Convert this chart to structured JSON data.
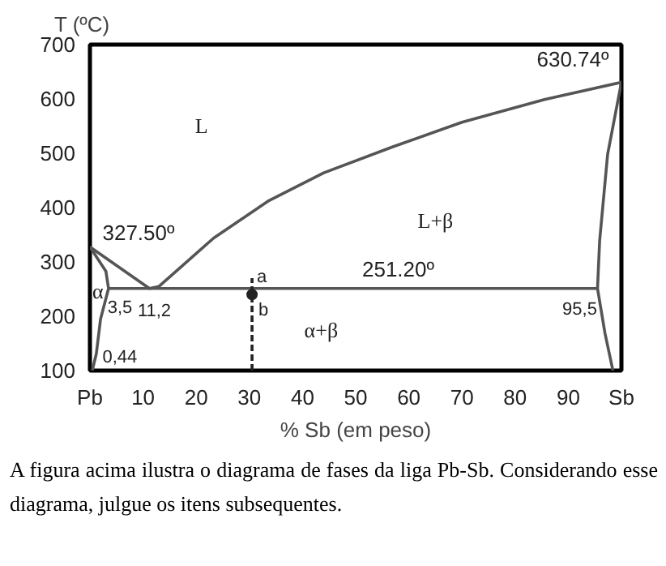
{
  "chart_data": {
    "type": "line",
    "ylabel": "T (ºC)",
    "xlabel": "% Sb (em peso)",
    "xlim": [
      0,
      100
    ],
    "ylim": [
      100,
      700
    ],
    "xticks": [
      {
        "value": 0,
        "label": "Pb"
      },
      10,
      20,
      30,
      40,
      50,
      60,
      70,
      80,
      90,
      {
        "value": 100,
        "label": "Sb"
      }
    ],
    "yticks": [
      100,
      200,
      300,
      400,
      500,
      600,
      700
    ],
    "grid": false,
    "marker": "none",
    "line_style": "solid",
    "series": [
      {
        "color": "#555555",
        "x": [
          0,
          11.2,
          13,
          23.3,
          33.7,
          44,
          57,
          70,
          85.5,
          100,
          97.4,
          95.9,
          95.5,
          96.9,
          98.4
        ],
        "values": [
          327.5,
          251.2,
          255,
          344,
          413,
          464,
          512,
          557,
          599,
          630.74,
          498,
          339,
          251.2,
          169,
          100
        ]
      },
      {
        "color": "#555555",
        "x": [
          0,
          3,
          3.5,
          2,
          1.2,
          0.44
        ],
        "values": [
          327.5,
          283,
          251.2,
          195,
          131,
          100
        ]
      },
      {
        "color": "#555555",
        "x": [
          3.5,
          95.5
        ],
        "values": [
          251.2,
          251.2
        ]
      },
      {
        "color": "#222222",
        "line_style": "dashed",
        "x": [
          30.5,
          30.5
        ],
        "values": [
          100,
          270
        ]
      },
      {
        "type": "scatter",
        "marker": "circle",
        "color": "#222222",
        "x": [
          30.5
        ],
        "values": [
          240
        ]
      }
    ],
    "annotations": [
      "L",
      "L+β",
      "α+β",
      "α",
      {
        "text": "327.50º",
        "x": 0,
        "y": 327.5
      },
      {
        "text": "251.20º",
        "x": 58,
        "y": 251.2
      },
      {
        "text": "630.74º",
        "x": 100,
        "y": 630.74
      },
      {
        "text": "3,5",
        "x": 3.5,
        "y": 251.2
      },
      {
        "text": "11,2",
        "x": 11.2,
        "y": 251.2
      },
      {
        "text": "95,5",
        "x": 95.5,
        "y": 251.2
      },
      {
        "text": "0,44",
        "x": 0.44,
        "y": 100
      },
      {
        "text": "a",
        "x": 30.5,
        "y": 251.2
      },
      {
        "text": "b",
        "x": 30.5,
        "y": 240
      },
      "A figura acima ilustra o diagrama de fases da liga Pb-Sb. Considerando esse diagrama, julgue os itens subsequentes."
    ]
  }
}
